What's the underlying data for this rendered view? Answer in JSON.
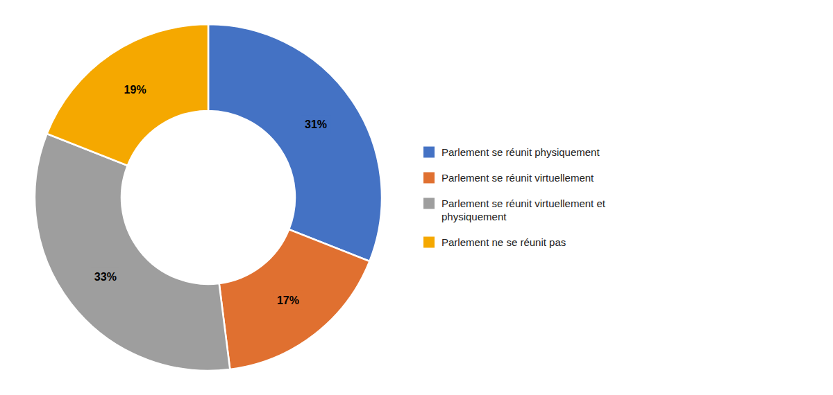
{
  "chart_data": {
    "type": "donut",
    "categories": [
      "Parlement se réunit physiquement",
      "Parlement se réunit virtuellement",
      "Parlement se réunit virtuellement et\nphysiquement",
      "Parlement ne se réunit pas"
    ],
    "values": [
      31,
      17,
      33,
      19
    ],
    "value_labels": [
      "31%",
      "17%",
      "33%",
      "19%"
    ],
    "colors": [
      "#4472C4",
      "#E07030",
      "#9E9E9E",
      "#F5A800"
    ],
    "data_labels": true,
    "legend": "right"
  }
}
